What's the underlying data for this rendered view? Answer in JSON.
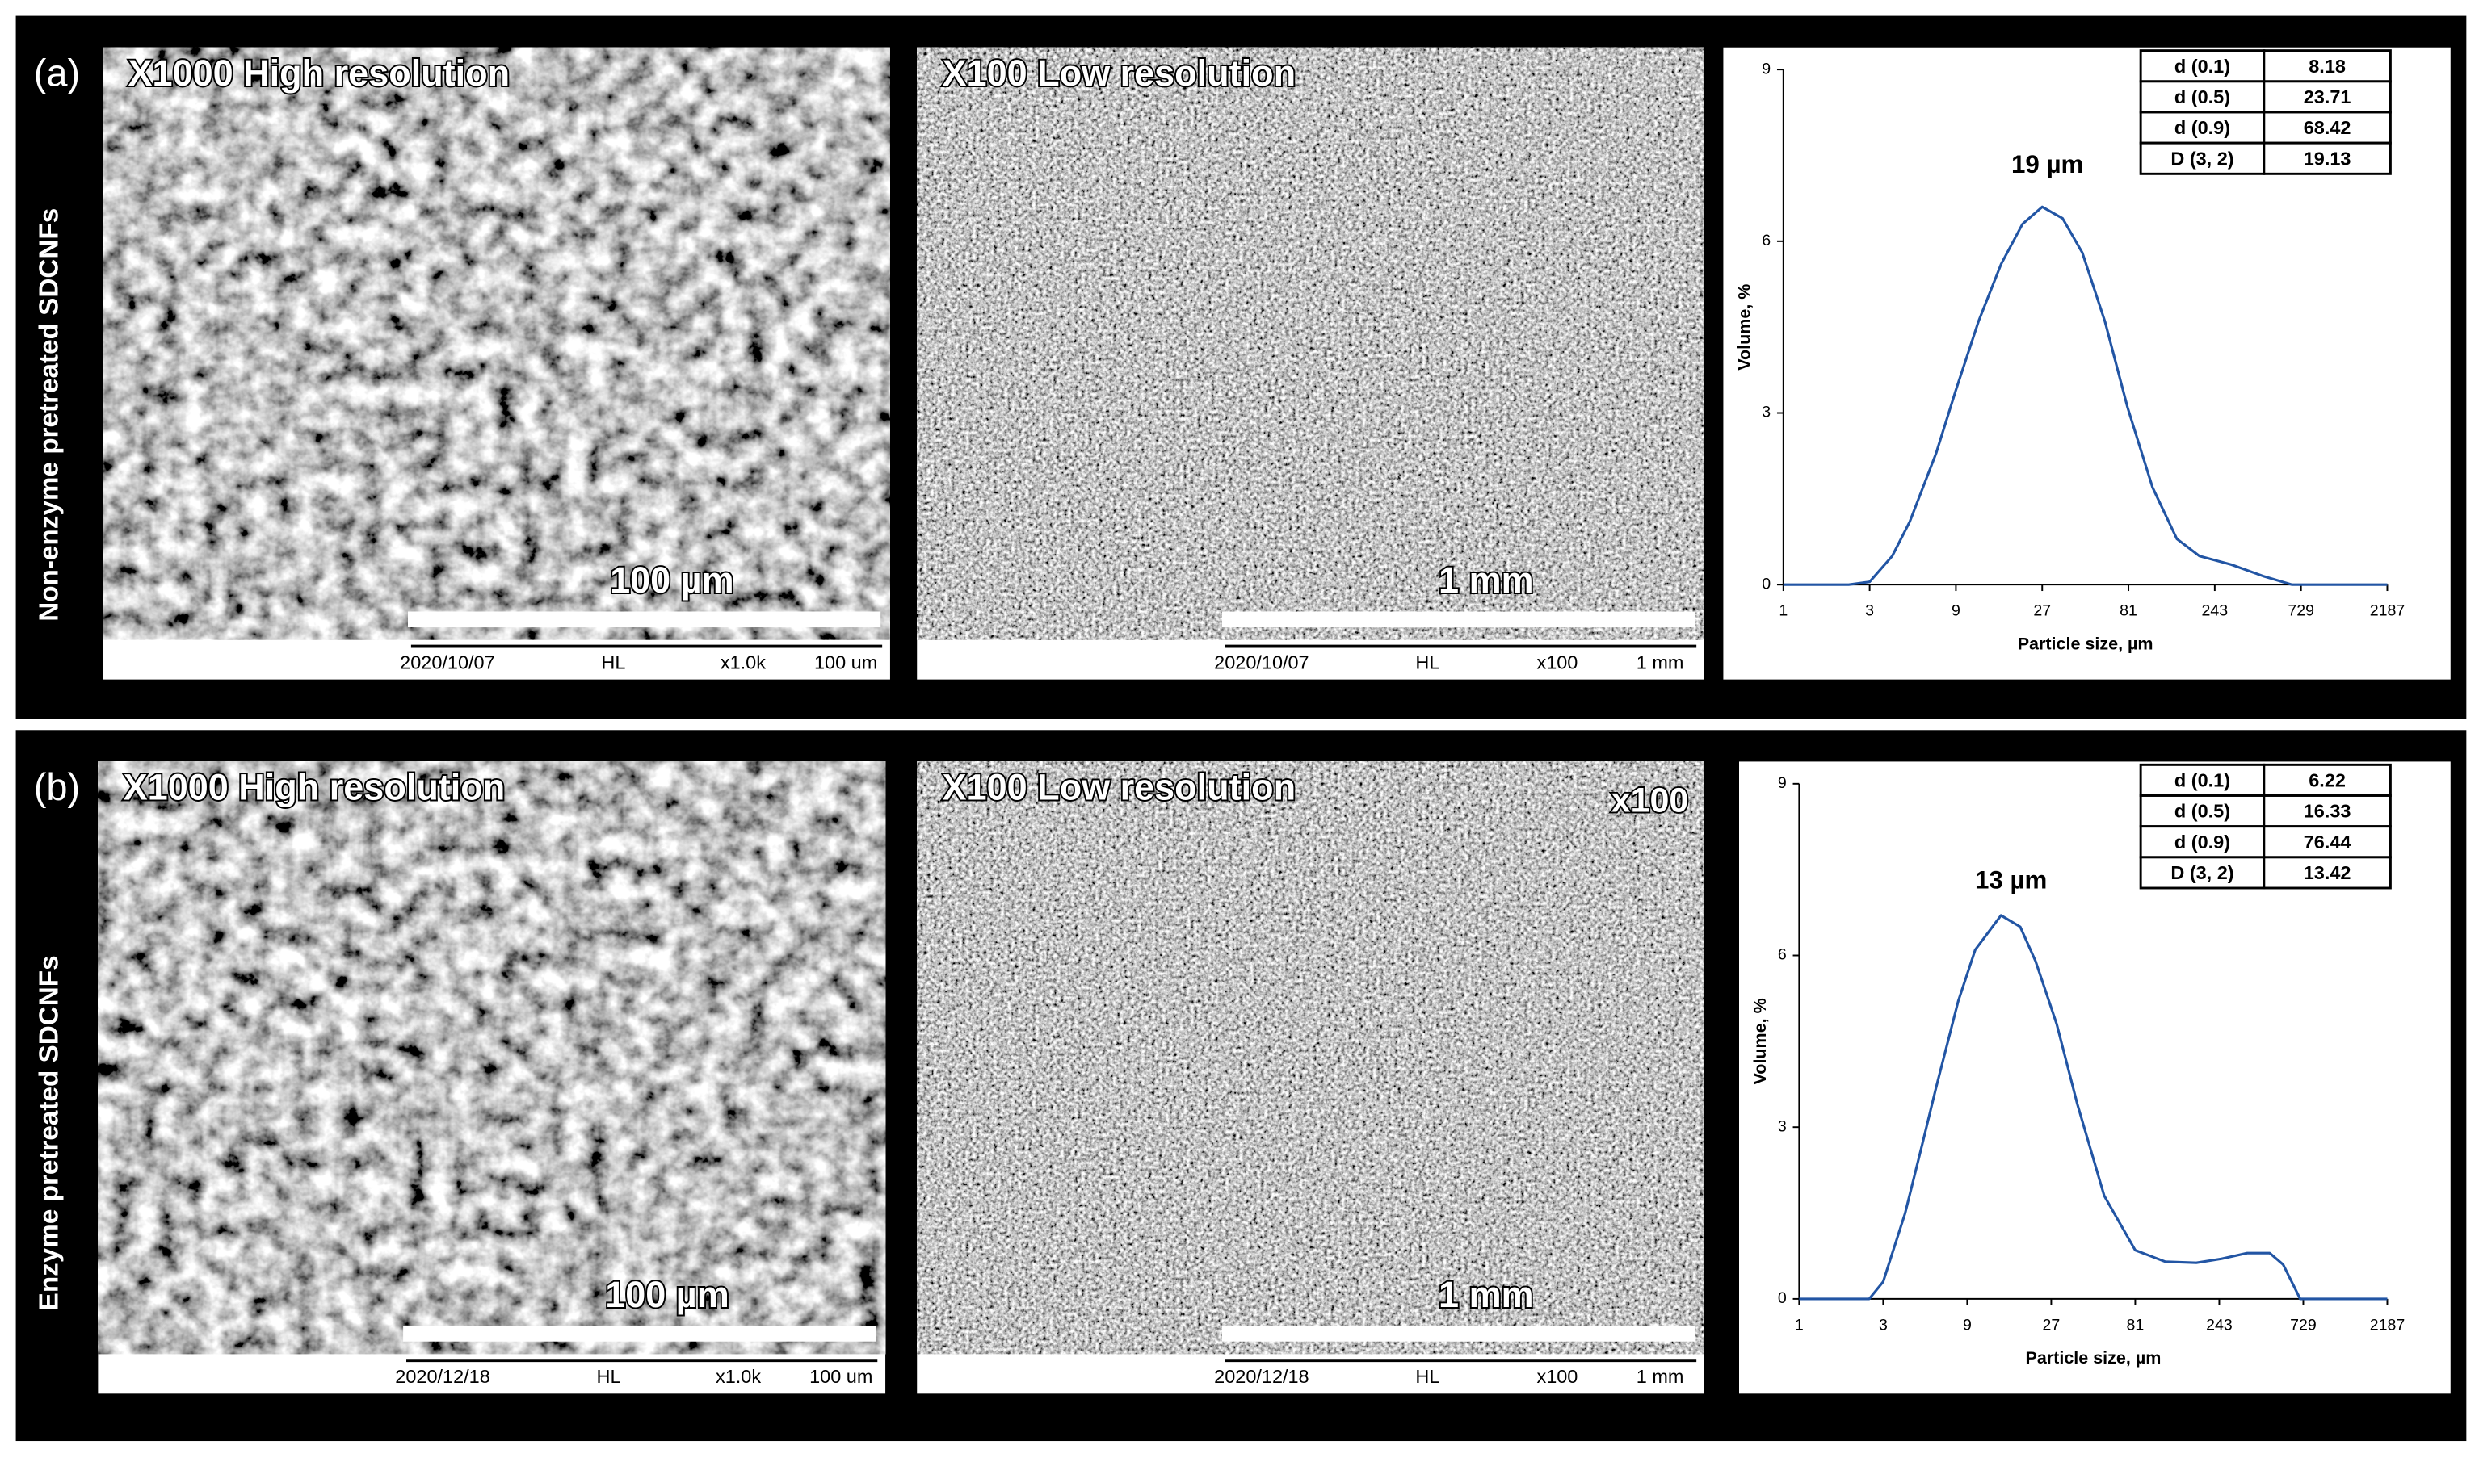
{
  "panels": [
    {
      "label": "(a)",
      "side_label": "Non-enzyme pretreated SDCNFs",
      "images": [
        {
          "title": "X1000 High resolution",
          "scale_label": "100 µm",
          "footer": [
            "2020/10/07",
            "HL",
            "x1.0k",
            "100 um"
          ]
        },
        {
          "title": "X100 Low resolution",
          "scale_label": "1 mm",
          "footer": [
            "2020/10/07",
            "HL",
            "x100",
            "1 mm"
          ]
        }
      ]
    },
    {
      "label": "(b)",
      "side_label": "Enzyme pretreated SDCNFs",
      "images": [
        {
          "title": "X1000 High resolution",
          "scale_label": "100 µm",
          "footer": [
            "2020/12/18",
            "HL",
            "x1.0k",
            "100 um"
          ]
        },
        {
          "title": "X100 Low resolution",
          "scale_label": "1 mm",
          "corner_label": "x100",
          "footer": [
            "2020/12/18",
            "HL",
            "x100",
            "1 mm"
          ]
        }
      ]
    }
  ],
  "chart_data": [
    {
      "type": "line",
      "annotation": "19 µm",
      "x_label": "Particle size, µm",
      "y_label": "Volume, %",
      "log_x": true,
      "xlim": [
        1,
        2187
      ],
      "ylim": [
        0,
        9
      ],
      "xticks": [
        1,
        3,
        9,
        27,
        81,
        243,
        729,
        2187
      ],
      "yticks": [
        0,
        3,
        6,
        9
      ],
      "x": [
        1,
        2.3,
        3,
        4,
        5,
        7,
        9,
        12,
        16,
        21,
        27,
        35,
        45,
        60,
        80,
        110,
        150,
        200,
        300,
        450,
        650,
        2187
      ],
      "series": [
        {
          "color": "#2255a4",
          "values": [
            0,
            0,
            0.05,
            0.5,
            1.1,
            2.3,
            3.4,
            4.6,
            5.6,
            6.3,
            6.6,
            6.4,
            5.8,
            4.6,
            3.1,
            1.7,
            0.8,
            0.5,
            0.35,
            0.15,
            0,
            0
          ]
        }
      ],
      "table": [
        [
          "d (0.1)",
          8.18
        ],
        [
          "d (0.5)",
          23.71
        ],
        [
          "d (0.9)",
          68.42
        ],
        [
          "D (3, 2)",
          19.13
        ]
      ]
    },
    {
      "type": "line",
      "annotation": "13 µm",
      "x_label": "Particle size, µm",
      "y_label": "Volume, %",
      "log_x": true,
      "xlim": [
        1,
        2187
      ],
      "ylim": [
        0,
        9
      ],
      "xticks": [
        1,
        3,
        9,
        27,
        81,
        243,
        729,
        2187
      ],
      "yticks": [
        0,
        3,
        6,
        9
      ],
      "x": [
        1,
        2.5,
        3,
        4,
        5,
        6,
        8,
        10,
        14,
        18,
        22,
        29,
        38,
        54,
        81,
        120,
        180,
        250,
        350,
        470,
        560,
        650,
        700,
        2187
      ],
      "series": [
        {
          "color": "#2255a4",
          "values": [
            0,
            0,
            0.3,
            1.5,
            2.7,
            3.7,
            5.2,
            6.1,
            6.7,
            6.5,
            5.9,
            4.8,
            3.4,
            1.8,
            0.85,
            0.65,
            0.63,
            0.7,
            0.8,
            0.8,
            0.6,
            0.2,
            0,
            0
          ]
        }
      ],
      "table": [
        [
          "d (0.1)",
          6.22
        ],
        [
          "d (0.5)",
          16.33
        ],
        [
          "d (0.9)",
          76.44
        ],
        [
          "D (3, 2)",
          13.42
        ]
      ]
    }
  ]
}
